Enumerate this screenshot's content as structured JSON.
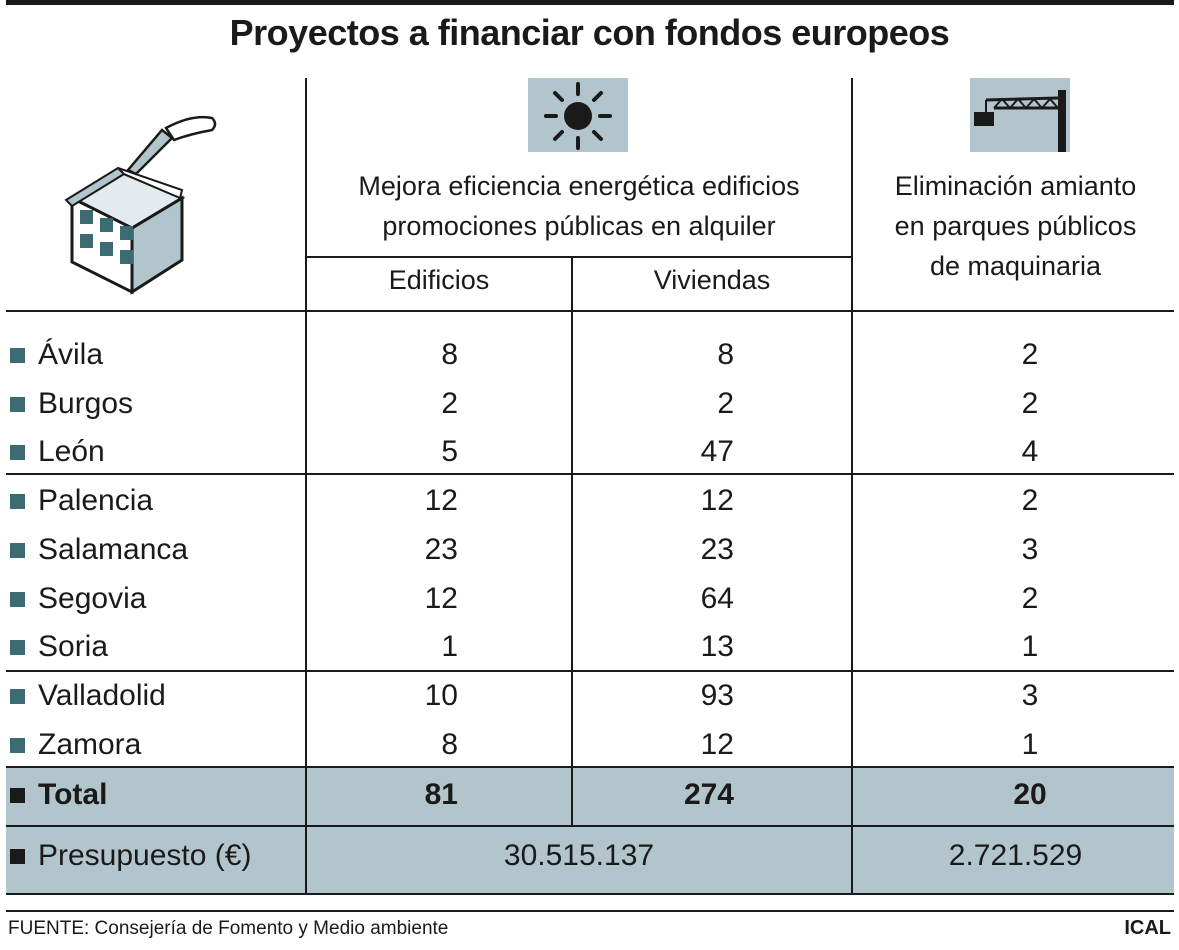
{
  "title": "Proyectos a financiar con fondos europeos",
  "headers": {
    "group_efficiency": [
      "Mejora eficiencia energética edificios",
      "promociones públicas en alquiler"
    ],
    "col_buildings": "Edificios",
    "col_homes": "Viviendas",
    "col_asbestos": [
      "Eliminación amianto",
      "en parques públicos",
      "de maquinaria"
    ]
  },
  "icons": {
    "left": "building-trowel-icon",
    "efficiency": "sun-icon",
    "asbestos": "crane-icon"
  },
  "colors": {
    "shade": "#b3c5cc",
    "bullet": "#3d6b72",
    "text": "#1a1a1a"
  },
  "chart_data": {
    "type": "table",
    "title": "Proyectos a financiar con fondos europeos",
    "columns": [
      "Edificios",
      "Viviendas",
      "Eliminación amianto en parques públicos de maquinaria"
    ],
    "rows": [
      {
        "label": "Ávila",
        "edificios": "8",
        "viviendas": "8",
        "amianto": "2"
      },
      {
        "label": "Burgos",
        "edificios": "2",
        "viviendas": "2",
        "amianto": "2"
      },
      {
        "label": "León",
        "edificios": "5",
        "viviendas": "47",
        "amianto": "4"
      },
      {
        "label": "Palencia",
        "edificios": "12",
        "viviendas": "12",
        "amianto": "2"
      },
      {
        "label": "Salamanca",
        "edificios": "23",
        "viviendas": "23",
        "amianto": "3"
      },
      {
        "label": "Segovia",
        "edificios": "12",
        "viviendas": "64",
        "amianto": "2"
      },
      {
        "label": "Soria",
        "edificios": "1",
        "viviendas": "13",
        "amianto": "1"
      },
      {
        "label": "Valladolid",
        "edificios": "10",
        "viviendas": "93",
        "amianto": "3"
      },
      {
        "label": "Zamora",
        "edificios": "8",
        "viviendas": "12",
        "amianto": "1"
      }
    ],
    "total": {
      "label": "Total",
      "edificios": "81",
      "viviendas": "274",
      "amianto": "20"
    },
    "budget": {
      "label": "Presupuesto (€)",
      "efficiency": "30.515.137",
      "amianto": "2.721.529"
    }
  },
  "footer": {
    "source": "FUENTE: Consejería de Fomento y Medio ambiente",
    "brand": "ICAL"
  }
}
